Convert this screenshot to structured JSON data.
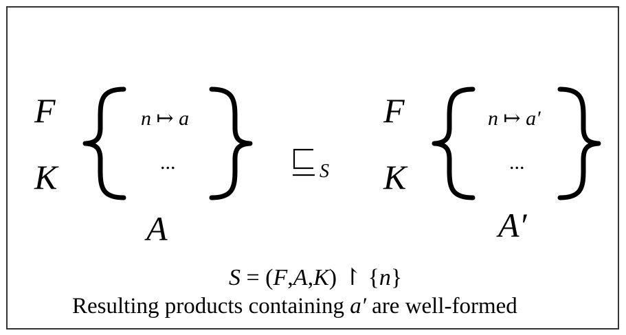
{
  "left": {
    "row1_label": "F",
    "row2_label": "K",
    "entry_var": "n",
    "entry_arrow": "↦",
    "entry_val": "a",
    "ellipsis": "...",
    "name": "A"
  },
  "relation": {
    "subscript": "S"
  },
  "right": {
    "row1_label": "F",
    "row2_label": "K",
    "entry_var": "n",
    "entry_arrow": "↦",
    "entry_val": "a′",
    "ellipsis": "...",
    "name": "A′"
  },
  "formula": {
    "lhs": "S",
    "eq": " = (",
    "f": "F",
    "c1": ",",
    "a": "A",
    "c2": ",",
    "k": "K",
    "close": ")",
    "restrict": " ↾ {",
    "n": "n",
    "end": "}"
  },
  "caption": {
    "before": "Resulting products containing ",
    "var": "a′",
    "after": " are well-formed"
  }
}
